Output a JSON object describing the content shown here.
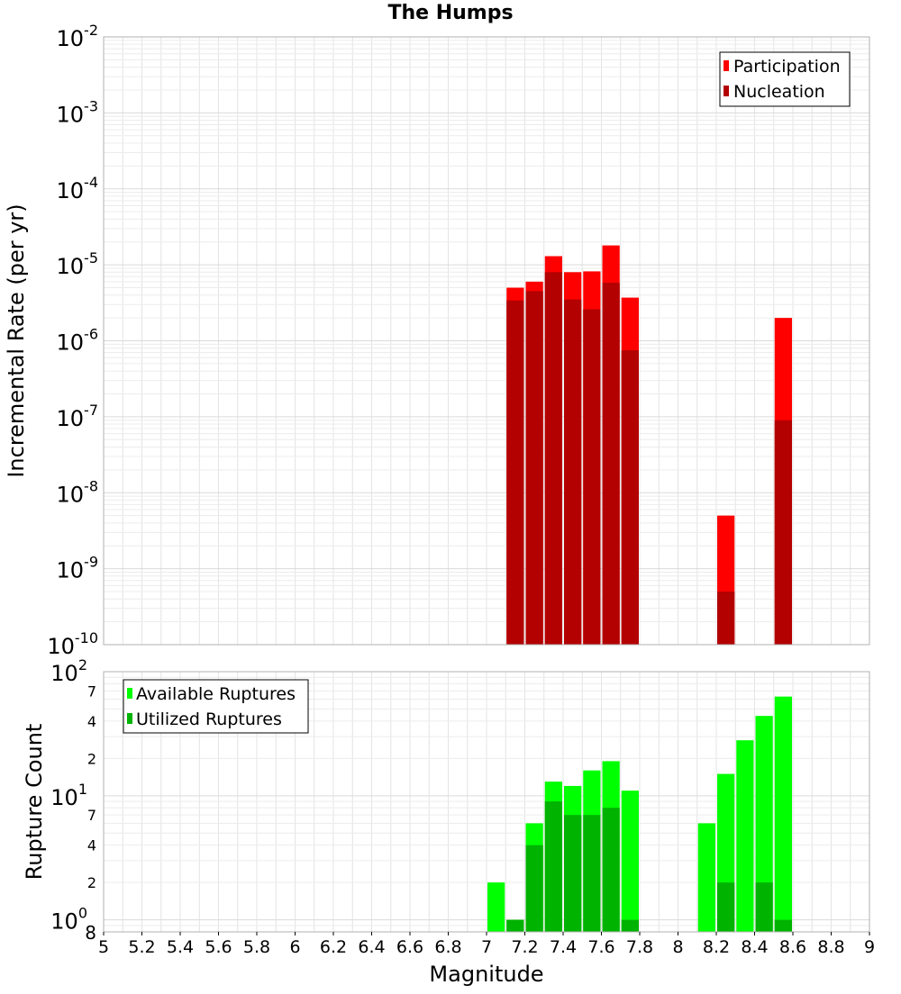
{
  "title": "The Humps",
  "chart_data": [
    {
      "type": "bar",
      "ylabel": "Incremental Rate (per yr)",
      "yscale": "log",
      "ylim": [
        1e-10,
        0.01
      ],
      "xlim": [
        5,
        9
      ],
      "grid": true,
      "legend_position": "top-right",
      "y_tick_exponents": [
        "-10",
        "-9",
        "-8",
        "-7",
        "-6",
        "-5",
        "-4",
        "-3",
        "-2"
      ],
      "y_tick_base": "10",
      "colors": {
        "participation": "#ff0000",
        "nucleation": "#b30000"
      },
      "x": [
        7.15,
        7.25,
        7.35,
        7.45,
        7.55,
        7.65,
        7.75,
        8.25,
        8.55
      ],
      "series": [
        {
          "name": "Participation",
          "values": [
            5e-06,
            6e-06,
            1.3e-05,
            8e-06,
            8.2e-06,
            1.8e-05,
            3.7e-06,
            5e-09,
            2e-06
          ]
        },
        {
          "name": "Nucleation",
          "values": [
            3.4e-06,
            4.5e-06,
            8e-06,
            3.5e-06,
            2.6e-06,
            5.8e-06,
            7.5e-07,
            5e-10,
            9e-08
          ]
        }
      ]
    },
    {
      "type": "bar",
      "ylabel": "Rupture Count",
      "xlabel": "Magnitude",
      "yscale": "log",
      "ylim": [
        0.8,
        100
      ],
      "xlim": [
        5,
        9
      ],
      "grid": true,
      "legend_position": "top-left",
      "x_ticks": [
        "5",
        "5.2",
        "5.4",
        "5.6",
        "5.8",
        "6",
        "6.2",
        "6.4",
        "6.6",
        "6.8",
        "7",
        "7.2",
        "7.4",
        "7.6",
        "7.8",
        "8",
        "8.2",
        "8.4",
        "8.6",
        "8.8",
        "9"
      ],
      "y_tick_base": "10",
      "y_major_exponents": [
        "0",
        "1",
        "2"
      ],
      "y_minor_labels": [
        "2",
        "4",
        "7",
        "2",
        "4",
        "7"
      ],
      "y_bottom_label": "8",
      "colors": {
        "available": "#00ff00",
        "utilized": "#00b300"
      },
      "x": [
        7.05,
        7.15,
        7.25,
        7.35,
        7.45,
        7.55,
        7.65,
        7.75,
        8.15,
        8.25,
        8.35,
        8.45,
        8.55
      ],
      "series": [
        {
          "name": "Available Ruptures",
          "values": [
            2,
            1,
            6,
            13,
            12,
            16,
            19,
            11,
            6,
            15,
            28,
            44,
            63
          ]
        },
        {
          "name": "Utilized Ruptures",
          "values": [
            0,
            1,
            4,
            9,
            7,
            7,
            8,
            1,
            0,
            2,
            0,
            2,
            1
          ]
        }
      ]
    }
  ]
}
